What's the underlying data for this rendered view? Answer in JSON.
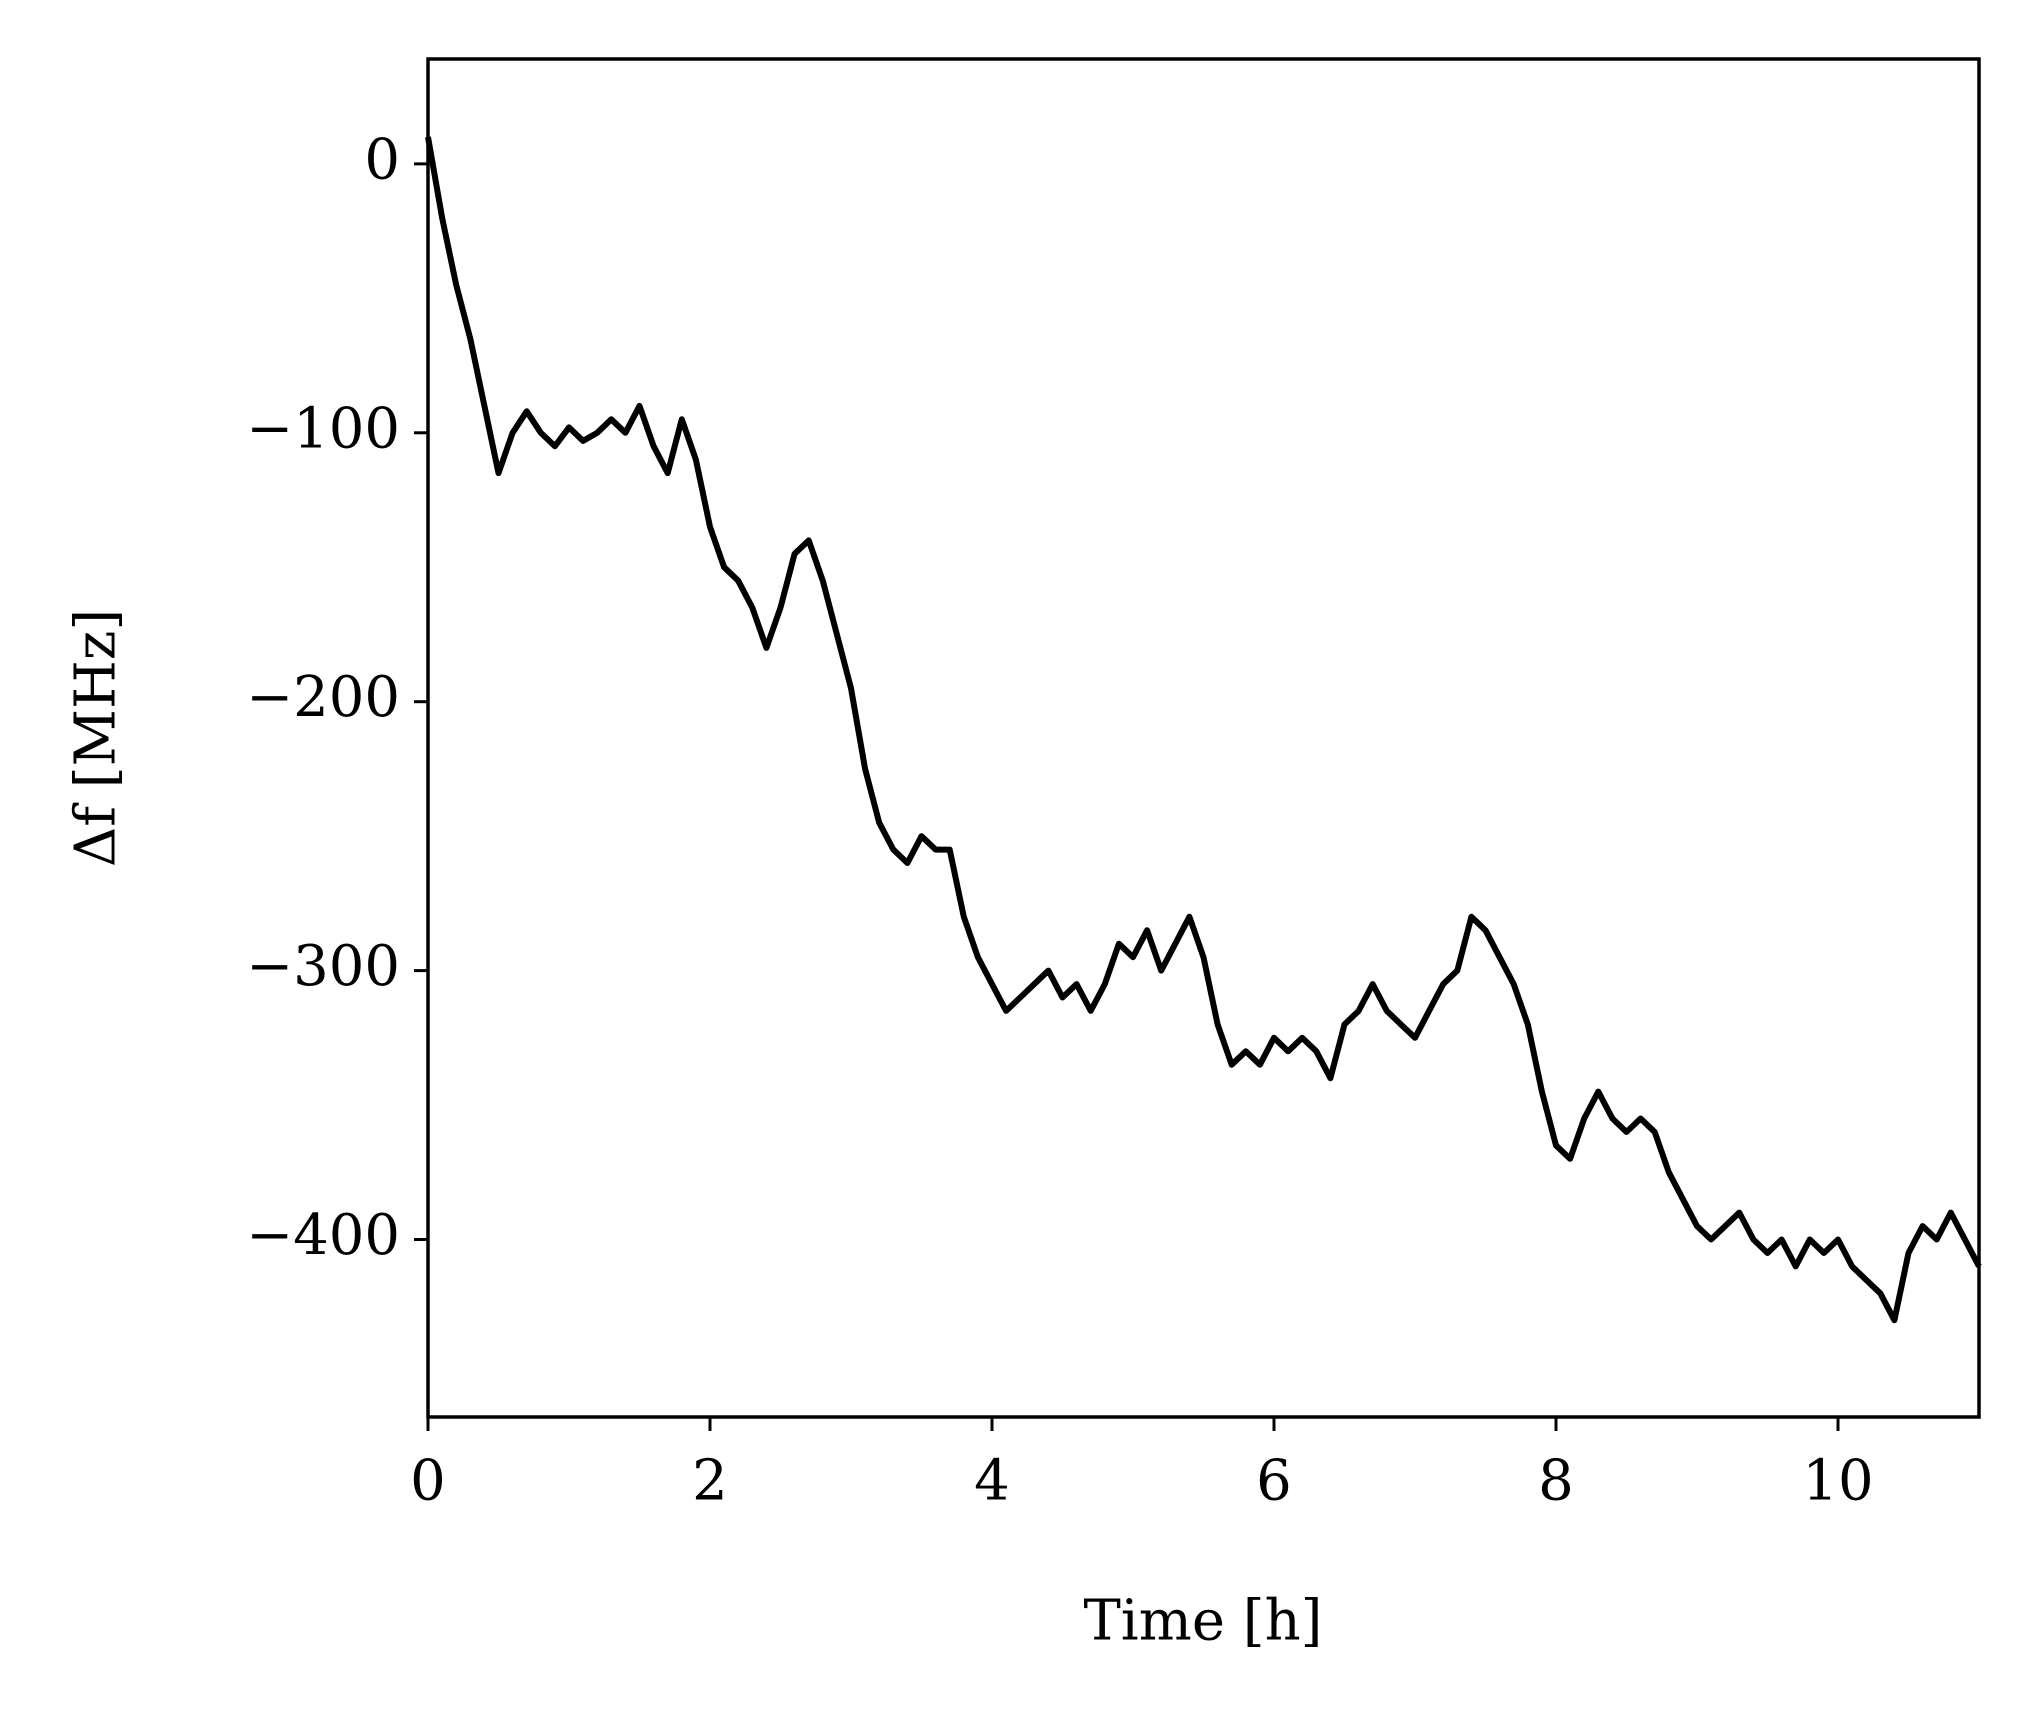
{
  "chart_data": {
    "type": "line",
    "x_label": "Time [h]",
    "y_label": "Δf [MHz]",
    "x": [
      0,
      0.1,
      0.2,
      0.3,
      0.4,
      0.5,
      0.6,
      0.7,
      0.8,
      0.9,
      1.0,
      1.1,
      1.2,
      1.3,
      1.4,
      1.5,
      1.6,
      1.7,
      1.8,
      1.9,
      2.0,
      2.1,
      2.2,
      2.3,
      2.4,
      2.5,
      2.6,
      2.7,
      2.8,
      2.9,
      3.0,
      3.1,
      3.2,
      3.3,
      3.4,
      3.5,
      3.6,
      3.7,
      3.8,
      3.9,
      4.0,
      4.1,
      4.2,
      4.3,
      4.4,
      4.5,
      4.6,
      4.7,
      4.8,
      4.9,
      5.0,
      5.1,
      5.2,
      5.3,
      5.4,
      5.5,
      5.6,
      5.7,
      5.8,
      5.9,
      6.0,
      6.1,
      6.2,
      6.3,
      6.4,
      6.5,
      6.6,
      6.7,
      6.8,
      6.9,
      7.0,
      7.1,
      7.2,
      7.3,
      7.4,
      7.5,
      7.6,
      7.7,
      7.8,
      7.9,
      8.0,
      8.1,
      8.2,
      8.3,
      8.4,
      8.5,
      8.6,
      8.7,
      8.8,
      8.9,
      9.0,
      9.1,
      9.2,
      9.3,
      9.4,
      9.5,
      9.6,
      9.7,
      9.8,
      9.9,
      10.0,
      10.1,
      10.2,
      10.3,
      10.4,
      10.5,
      10.6,
      10.7,
      10.8,
      10.9,
      11.0
    ],
    "series": [
      {
        "color": "#000000",
        "values": [
          10,
          -20,
          -45,
          -65,
          -90,
          -115,
          -100,
          -92,
          -100,
          -105,
          -98,
          -103,
          -100,
          -95,
          -100,
          -90,
          -105,
          -115,
          -95,
          -110,
          -135,
          -150,
          -155,
          -165,
          -180,
          -165,
          -145,
          -140,
          -155,
          -175,
          -195,
          -225,
          -245,
          -255,
          -260,
          -250,
          -255,
          -255,
          -280,
          -295,
          -305,
          -315,
          -310,
          -305,
          -300,
          -310,
          -305,
          -315,
          -305,
          -290,
          -295,
          -285,
          -300,
          -290,
          -280,
          -295,
          -320,
          -335,
          -330,
          -335,
          -325,
          -330,
          -325,
          -330,
          -340,
          -320,
          -315,
          -305,
          -315,
          -320,
          -325,
          -315,
          -305,
          -300,
          -280,
          -285,
          -295,
          -305,
          -320,
          -345,
          -365,
          -370,
          -355,
          -345,
          -355,
          -360,
          -355,
          -360,
          -375,
          -385,
          -395,
          -400,
          -395,
          -390,
          -400,
          -405,
          -400,
          -410,
          -400,
          -405,
          -400,
          -410,
          -415,
          -420,
          -430,
          -405,
          -395,
          -400,
          -390,
          -400,
          -410
        ]
      }
    ],
    "xlim": [
      0,
      11
    ],
    "xticks": [
      0,
      2,
      4,
      6,
      8,
      10
    ],
    "ylim": [
      -466,
      39
    ],
    "yticks": [
      {
        "value": -400,
        "label": "−400"
      },
      {
        "value": -300,
        "label": "−300"
      },
      {
        "value": -200,
        "label": "−200"
      },
      {
        "value": -100,
        "label": "−100"
      },
      0
    ]
  }
}
